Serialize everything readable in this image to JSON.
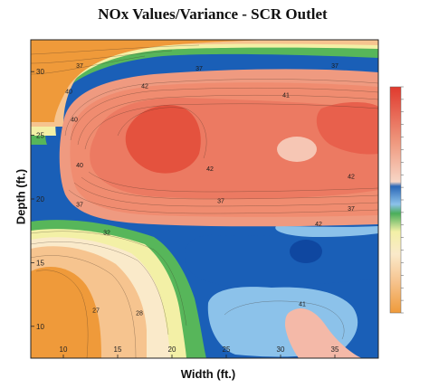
{
  "chart_data": {
    "type": "heatmap",
    "subtype": "filled-contour",
    "title": "NOx Values/Variance - SCR Outlet",
    "xlabel": "Width (ft.)",
    "ylabel": "Depth (ft.)",
    "xlim": [
      7,
      39
    ],
    "ylim": [
      7.5,
      32.5
    ],
    "x_ticks": [
      10,
      15,
      20,
      25,
      30,
      35
    ],
    "y_ticks": [
      10,
      15,
      20,
      25,
      30
    ],
    "colorbar_range": [
      11,
      47
    ],
    "contour_labels": [
      {
        "text": "37",
        "x": 11.5,
        "y": 30.5
      },
      {
        "text": "40",
        "x": 10.5,
        "y": 28.5
      },
      {
        "text": "40",
        "x": 11,
        "y": 26.3
      },
      {
        "text": "42",
        "x": 17.5,
        "y": 28.9
      },
      {
        "text": "37",
        "x": 22.5,
        "y": 30.3
      },
      {
        "text": "41",
        "x": 30.5,
        "y": 28.2
      },
      {
        "text": "37",
        "x": 35,
        "y": 30.5
      },
      {
        "text": "40",
        "x": 11.5,
        "y": 22.7
      },
      {
        "text": "42",
        "x": 23.5,
        "y": 22.4
      },
      {
        "text": "42",
        "x": 36.5,
        "y": 21.8
      },
      {
        "text": "37",
        "x": 11.5,
        "y": 19.6
      },
      {
        "text": "37",
        "x": 24.5,
        "y": 19.9
      },
      {
        "text": "37",
        "x": 36.5,
        "y": 19.3
      },
      {
        "text": "32",
        "x": 14,
        "y": 17.4
      },
      {
        "text": "42",
        "x": 33.5,
        "y": 18.1
      },
      {
        "text": "27",
        "x": 13,
        "y": 11.3
      },
      {
        "text": "28",
        "x": 17,
        "y": 11.1
      },
      {
        "text": "41",
        "x": 32,
        "y": 11.8
      }
    ]
  },
  "colors": {
    "orange": "#ef9a3a",
    "peach": "#f6c48f",
    "pale": "#faeaca",
    "yellow": "#f3f0a6",
    "green": "#57b65a",
    "dark_blue": "#1a5fb7",
    "light_blue": "#8cc2ea",
    "salmon": "#ef9a80",
    "red": "#e8604c"
  }
}
